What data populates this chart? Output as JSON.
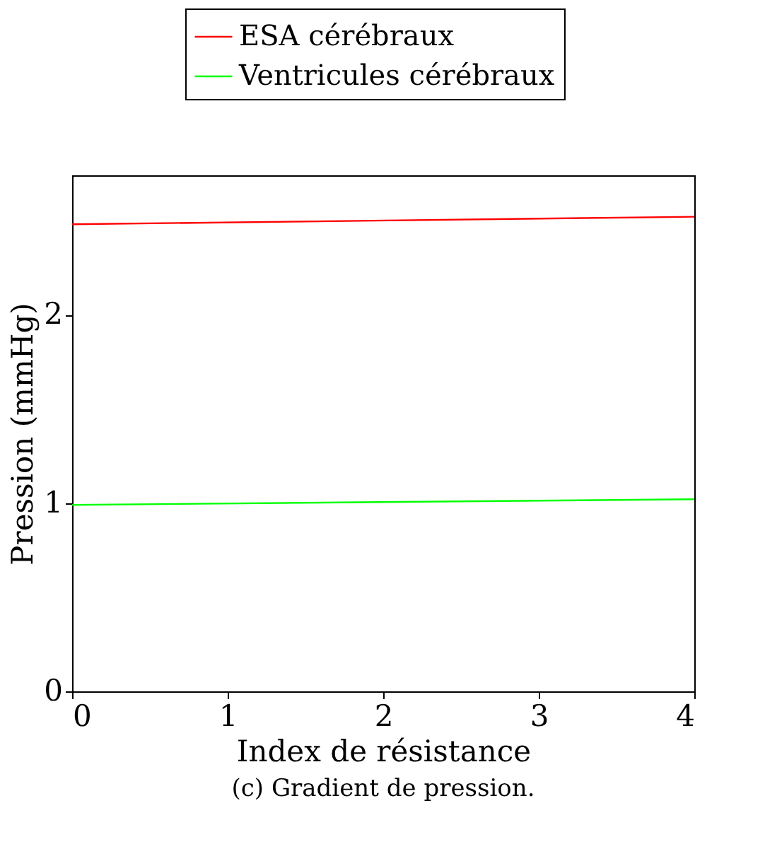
{
  "chart_data": {
    "type": "line",
    "xlabel": "Index de résistance",
    "ylabel": "Pression (mmHg)",
    "x": [
      0,
      4
    ],
    "series": [
      {
        "name": "ESA cérébraux",
        "color": "#ff0000",
        "values": [
          2.48,
          2.52
        ]
      },
      {
        "name": "Ventricules cérébraux",
        "color": "#00ff00",
        "values": [
          0.99,
          1.02
        ]
      }
    ],
    "xlim": [
      0,
      4
    ],
    "xticks": [
      0,
      1,
      2,
      3,
      4
    ],
    "ylim": [
      0,
      2.74
    ],
    "yticks": [
      0,
      1,
      2
    ],
    "grid": false,
    "legend": "top",
    "marker": "none",
    "line_style": "solid",
    "annotations": [
      "(c) Gradient de pression."
    ]
  }
}
